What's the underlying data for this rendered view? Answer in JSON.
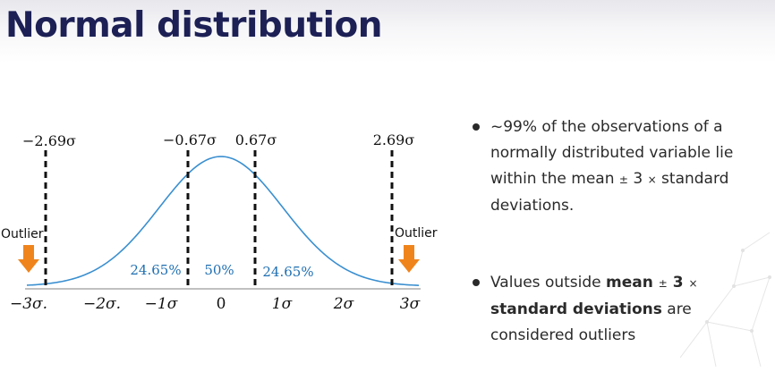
{
  "title": "Normal distribution",
  "diagram": {
    "cutoff_labels": [
      "−2.69σ",
      "−0.67σ",
      "0.67σ",
      "2.69σ"
    ],
    "region_labels": [
      "24.65%",
      "50%",
      "24.65%"
    ],
    "outlier_labels": [
      "Outlier",
      "Outlier"
    ],
    "axis_ticks": [
      "−3σ.",
      "−2σ.",
      "−1σ",
      "0",
      "1σ",
      "2σ",
      "3σ"
    ],
    "colors": {
      "curve": "#3a8fd0",
      "region_text": "#1f6fb2",
      "arrow": "#f0841c",
      "dash": "#111111"
    }
  },
  "bullets": [
    {
      "parts": [
        "~99% of the observations of a normally distributed variable lie within the mean ",
        "±",
        " 3 ",
        "×",
        " standard deviations."
      ]
    },
    {
      "pre": "Values outside ",
      "bold1": "mean ",
      "pm": "±",
      "bold2": " 3 ",
      "times": "×",
      "bold3": "standard deviations",
      "post": " are considered outliers"
    }
  ]
}
